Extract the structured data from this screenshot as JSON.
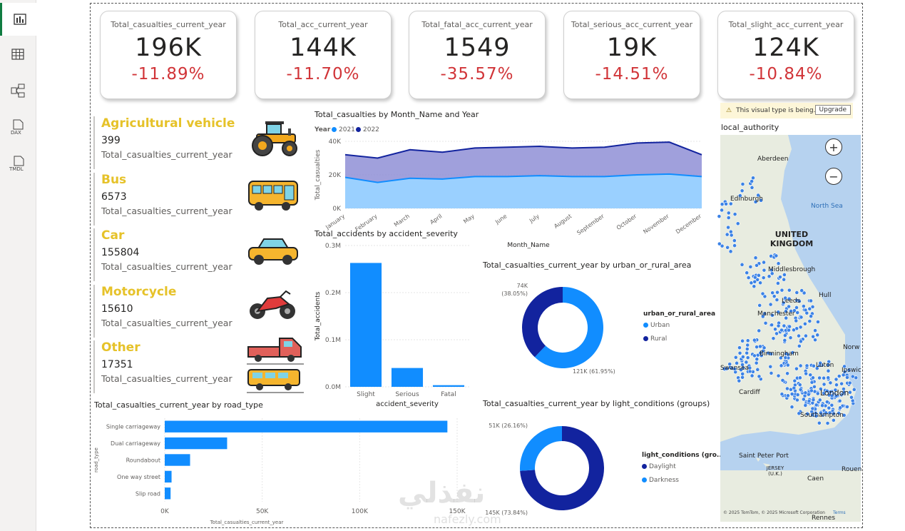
{
  "sidebar": [
    {
      "icon": "report-view-icon",
      "label": ""
    },
    {
      "icon": "table-view-icon",
      "label": ""
    },
    {
      "icon": "model-view-icon",
      "label": ""
    },
    {
      "icon": "dax-query-icon",
      "label": "DAX"
    },
    {
      "icon": "tmdl-view-icon",
      "label": "TMDL"
    }
  ],
  "kpis": [
    {
      "title": "Total_casualties_current_year",
      "value": "196K",
      "change": "-11.89%"
    },
    {
      "title": "Total_acc_current_year",
      "value": "144K",
      "change": "-11.70%"
    },
    {
      "title": "Total_fatal_acc_current_year",
      "value": "1549",
      "change": "-35.57%"
    },
    {
      "title": "Total_serious_acc_current_year",
      "value": "19K",
      "change": "-14.51%"
    },
    {
      "title": "Total_slight_acc_current_year",
      "value": "124K",
      "change": "-10.84%"
    }
  ],
  "vehicles": [
    {
      "name": "Agricultural vehicle",
      "value": "399",
      "subtitle": "Total_casualties_current_year",
      "icon": "tractor-icon"
    },
    {
      "name": "Bus",
      "value": "6573",
      "subtitle": "Total_casualties_current_year",
      "icon": "bus-icon"
    },
    {
      "name": "Car",
      "value": "155804",
      "subtitle": "Total_casualties_current_year",
      "icon": "car-icon"
    },
    {
      "name": "Motorcycle",
      "value": "15610",
      "subtitle": "Total_casualties_current_year",
      "icon": "motorcycle-icon"
    },
    {
      "name": "Other",
      "value": "17351",
      "subtitle": "Total_casualties_current_year",
      "icon": "truck-van-icon"
    }
  ],
  "chart_data": [
    {
      "type": "area",
      "title": "Total_casualties by Month_Name and Year",
      "legend_title": "Year",
      "xlabel": "Month_Name",
      "ylabel": "Total_casualties",
      "ylim": [
        0,
        40000
      ],
      "yticks": [
        "0K",
        "20K",
        "40K"
      ],
      "categories": [
        "January",
        "February",
        "March",
        "April",
        "May",
        "June",
        "July",
        "August",
        "September",
        "October",
        "November",
        "December"
      ],
      "series": [
        {
          "name": "2021",
          "color": "#118dff",
          "values": [
            18500,
            15500,
            18000,
            17500,
            19000,
            19000,
            19500,
            19000,
            19000,
            20000,
            20500,
            19000
          ]
        },
        {
          "name": "2022",
          "color": "#12239e",
          "values": [
            32000,
            30000,
            35000,
            33500,
            36000,
            36500,
            37000,
            36000,
            36500,
            39000,
            39500,
            32000
          ]
        }
      ]
    },
    {
      "type": "bar",
      "title": "Total_accidents by accident_severity",
      "xlabel": "accident_severity",
      "ylabel": "Total_accidents",
      "ylim": [
        0,
        300000
      ],
      "yticks": [
        "0.0M",
        "0.1M",
        "0.2M",
        "0.3M"
      ],
      "categories": [
        "Slight",
        "Serious",
        "Fatal"
      ],
      "values": [
        263000,
        40000,
        3500
      ],
      "color": "#118dff"
    },
    {
      "type": "pie",
      "title": "Total_casualties_current_year by urban_or_rural_area",
      "legend_title": "urban_or_rural_area",
      "categories": [
        "Urban",
        "Rural"
      ],
      "values": [
        121000,
        74000
      ],
      "labels": [
        "121K (61.95%)",
        "74K (38.05%)"
      ],
      "colors": [
        "#118dff",
        "#12239e"
      ]
    },
    {
      "type": "bar",
      "title": "Total_casualties_current_year by road_type",
      "xlabel": "Total_casualties_current_year",
      "ylabel": "road_type",
      "xlim": [
        0,
        150000
      ],
      "xticks": [
        "0K",
        "50K",
        "100K",
        "150K"
      ],
      "categories": [
        "Single carriageway",
        "Dual carriageway",
        "Roundabout",
        "One way street",
        "Slip road"
      ],
      "values": [
        145000,
        32000,
        13000,
        3500,
        3000
      ],
      "color": "#118dff"
    },
    {
      "type": "pie",
      "title": "Total_casualties_current_year by light_conditions (groups)",
      "legend_title": "light_conditions (gro...",
      "categories": [
        "Daylight",
        "Darkness"
      ],
      "values": [
        145000,
        51000
      ],
      "labels": [
        "145K (73.84%)",
        "51K (26.16%)"
      ],
      "colors": [
        "#12239e",
        "#118dff"
      ]
    }
  ],
  "map": {
    "warning": "This visual type is being...",
    "upgrade_label": "Upgrade",
    "title": "local_authority",
    "zoom_in": "+",
    "zoom_out": "−",
    "places": [
      "Aberdeen",
      "Edinburgh",
      "North Sea",
      "UNITED KINGDOM",
      "Middlesbrough",
      "Leeds",
      "Hull",
      "Manchester",
      "Birmingham",
      "Norw",
      "Swansea",
      "Luton",
      "Ipswic",
      "London",
      "Cardiff",
      "Southampton",
      "Saint Peter Port",
      "JERSEY (U.K.)",
      "Rennes",
      "Caen",
      "Rouen"
    ],
    "attribution": "© 2025 TomTom, © 2025 Microsoft Corporation",
    "terms": "Terms"
  },
  "watermark": {
    "arabic": "نفذلي",
    "latin": "nafezly.com"
  }
}
